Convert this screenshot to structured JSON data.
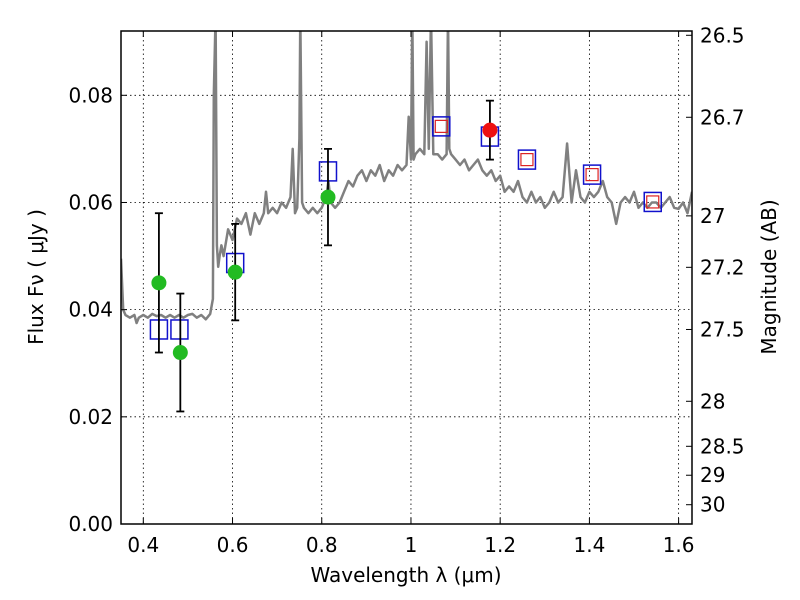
{
  "chart_data": {
    "type": "scatter",
    "xlabel": "Wavelength  λ (μm)",
    "ylabel": "Flux  Fν  ( μJy )",
    "y2label": "Magnitude (AB)",
    "xlim": [
      0.35,
      1.63
    ],
    "ylim": [
      0.0,
      0.092
    ],
    "grid": true,
    "x_ticks": [
      0.4,
      0.6,
      0.8,
      1.0,
      1.2,
      1.4,
      1.6
    ],
    "x_tick_labels": [
      "0.4",
      "0.6",
      "0.8",
      "1",
      "1.2",
      "1.4",
      "1.6"
    ],
    "y_ticks": [
      0.0,
      0.02,
      0.04,
      0.06,
      0.08
    ],
    "y_tick_labels": [
      "0.00",
      "0.02",
      "0.04",
      "0.06",
      "0.08"
    ],
    "y2_ticks": [
      {
        "label": "26.5",
        "flux": 0.0912
      },
      {
        "label": "26.7",
        "flux": 0.0759
      },
      {
        "label": "27",
        "flux": 0.0575
      },
      {
        "label": "27.2",
        "flux": 0.0479
      },
      {
        "label": "27.5",
        "flux": 0.0363
      },
      {
        "label": "28",
        "flux": 0.0229
      },
      {
        "label": "28.5",
        "flux": 0.0145
      },
      {
        "label": "29",
        "flux": 0.0091
      },
      {
        "label": "30",
        "flux": 0.0036
      }
    ],
    "colors": {
      "spectrum": "#808080",
      "observed": "#22bb22",
      "observed_highlight": "#ee1111",
      "model_box": "#1111cc",
      "model_inner": "#dd2222",
      "errorbar": "#000000"
    },
    "series": [
      {
        "name": "model spectrum",
        "kind": "line",
        "x": [
          0.35,
          0.355,
          0.36,
          0.37,
          0.38,
          0.385,
          0.39,
          0.4,
          0.41,
          0.42,
          0.43,
          0.44,
          0.45,
          0.46,
          0.47,
          0.48,
          0.49,
          0.5,
          0.51,
          0.52,
          0.53,
          0.54,
          0.55,
          0.556,
          0.558,
          0.562,
          0.565,
          0.568,
          0.571,
          0.575,
          0.58,
          0.59,
          0.6,
          0.61,
          0.62,
          0.63,
          0.64,
          0.65,
          0.66,
          0.67,
          0.675,
          0.68,
          0.69,
          0.7,
          0.71,
          0.72,
          0.73,
          0.735,
          0.74,
          0.745,
          0.75,
          0.752,
          0.756,
          0.76,
          0.77,
          0.78,
          0.79,
          0.8,
          0.81,
          0.815,
          0.82,
          0.83,
          0.84,
          0.85,
          0.86,
          0.87,
          0.88,
          0.89,
          0.9,
          0.91,
          0.92,
          0.93,
          0.94,
          0.95,
          0.96,
          0.97,
          0.98,
          0.99,
          0.995,
          1.0,
          1.003,
          1.006,
          1.01,
          1.02,
          1.03,
          1.035,
          1.04,
          1.045,
          1.05,
          1.06,
          1.07,
          1.08,
          1.083,
          1.086,
          1.09,
          1.1,
          1.11,
          1.12,
          1.13,
          1.14,
          1.15,
          1.16,
          1.17,
          1.18,
          1.19,
          1.2,
          1.21,
          1.22,
          1.23,
          1.24,
          1.25,
          1.26,
          1.27,
          1.28,
          1.29,
          1.3,
          1.31,
          1.32,
          1.33,
          1.34,
          1.35,
          1.36,
          1.37,
          1.38,
          1.39,
          1.4,
          1.41,
          1.42,
          1.43,
          1.44,
          1.45,
          1.46,
          1.47,
          1.48,
          1.49,
          1.5,
          1.51,
          1.52,
          1.53,
          1.54,
          1.55,
          1.56,
          1.57,
          1.58,
          1.59,
          1.6,
          1.61,
          1.62,
          1.63
        ],
        "y": [
          0.0495,
          0.04,
          0.039,
          0.0385,
          0.039,
          0.0375,
          0.0385,
          0.039,
          0.0385,
          0.0392,
          0.0388,
          0.039,
          0.0385,
          0.039,
          0.0385,
          0.039,
          0.0385,
          0.039,
          0.0392,
          0.0385,
          0.039,
          0.0382,
          0.0392,
          0.042,
          0.08,
          0.095,
          0.052,
          0.048,
          0.05,
          0.052,
          0.05,
          0.055,
          0.053,
          0.057,
          0.056,
          0.058,
          0.054,
          0.058,
          0.056,
          0.058,
          0.062,
          0.058,
          0.059,
          0.058,
          0.06,
          0.059,
          0.061,
          0.07,
          0.058,
          0.059,
          0.072,
          0.095,
          0.06,
          0.059,
          0.058,
          0.059,
          0.058,
          0.059,
          0.061,
          0.064,
          0.06,
          0.059,
          0.06,
          0.062,
          0.064,
          0.063,
          0.065,
          0.066,
          0.064,
          0.066,
          0.065,
          0.067,
          0.064,
          0.066,
          0.065,
          0.067,
          0.066,
          0.067,
          0.076,
          0.068,
          0.095,
          0.068,
          0.069,
          0.07,
          0.069,
          0.09,
          0.07,
          0.095,
          0.069,
          0.069,
          0.068,
          0.069,
          0.095,
          0.07,
          0.069,
          0.068,
          0.067,
          0.068,
          0.066,
          0.067,
          0.068,
          0.066,
          0.065,
          0.066,
          0.064,
          0.065,
          0.062,
          0.063,
          0.062,
          0.064,
          0.061,
          0.06,
          0.062,
          0.06,
          0.061,
          0.059,
          0.06,
          0.062,
          0.06,
          0.061,
          0.071,
          0.06,
          0.066,
          0.061,
          0.06,
          0.062,
          0.061,
          0.062,
          0.064,
          0.061,
          0.06,
          0.056,
          0.06,
          0.061,
          0.06,
          0.062,
          0.059,
          0.06,
          0.059,
          0.06,
          0.06,
          0.059,
          0.06,
          0.061,
          0.059,
          0.0588,
          0.06,
          0.058,
          0.062
        ]
      },
      {
        "name": "observed photometry",
        "kind": "points",
        "points": [
          {
            "x": 0.435,
            "y": 0.045,
            "err": 0.013
          },
          {
            "x": 0.483,
            "y": 0.032,
            "err": 0.011
          },
          {
            "x": 0.606,
            "y": 0.047,
            "err": 0.009
          },
          {
            "x": 0.814,
            "y": 0.061,
            "err": 0.009
          },
          {
            "x": 1.177,
            "y": 0.0735,
            "err": 0.0055,
            "highlight": true
          }
        ]
      },
      {
        "name": "model photometry",
        "kind": "boxes",
        "points": [
          {
            "x": 0.435,
            "y": 0.0363
          },
          {
            "x": 0.481,
            "y": 0.0363
          },
          {
            "x": 0.606,
            "y": 0.0487
          },
          {
            "x": 0.814,
            "y": 0.0658
          },
          {
            "x": 1.068,
            "y": 0.0742,
            "inner": true
          },
          {
            "x": 1.177,
            "y": 0.0723
          },
          {
            "x": 1.26,
            "y": 0.068,
            "inner": true
          },
          {
            "x": 1.406,
            "y": 0.0652,
            "inner": true
          },
          {
            "x": 1.542,
            "y": 0.0601,
            "inner": true
          }
        ]
      }
    ]
  }
}
